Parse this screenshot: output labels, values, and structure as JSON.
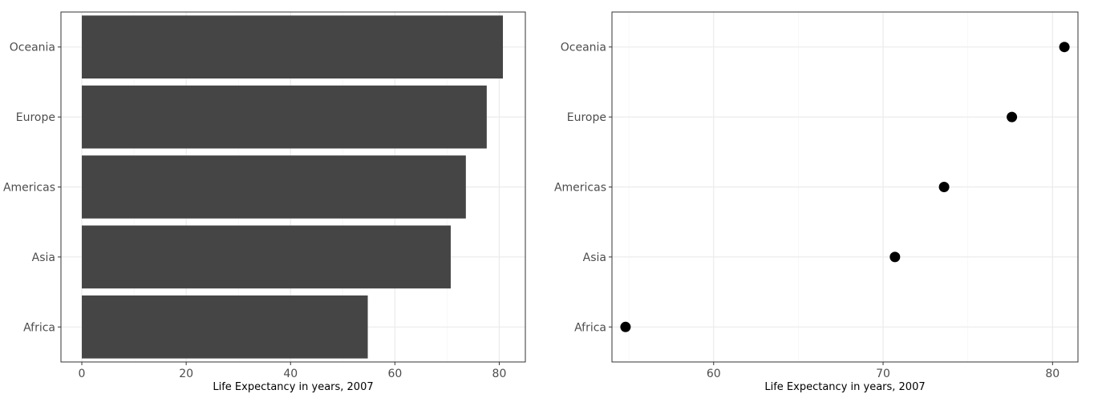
{
  "chart_data": [
    {
      "type": "bar",
      "orientation": "horizontal",
      "categories": [
        "Africa",
        "Asia",
        "Americas",
        "Europe",
        "Oceania"
      ],
      "values": [
        54.8,
        70.7,
        73.6,
        77.6,
        80.7
      ],
      "xlabel": "Life Expectancy in years, 2007",
      "ylabel": "",
      "xlim": [
        -4,
        85
      ],
      "xticks": [
        0,
        20,
        40,
        60,
        80
      ],
      "grid": true,
      "colors": {
        "bar": "#454545",
        "grid_major": "#ebebeb",
        "grid_minor": "#f5f5f5",
        "panel_border": "#333333"
      }
    },
    {
      "type": "scatter",
      "categories": [
        "Africa",
        "Asia",
        "Americas",
        "Europe",
        "Oceania"
      ],
      "values": [
        54.8,
        70.7,
        73.6,
        77.6,
        80.7
      ],
      "xlabel": "Life Expectancy in years, 2007",
      "ylabel": "",
      "xlim": [
        54.0,
        81.5
      ],
      "xticks": [
        60,
        70,
        80
      ],
      "grid": true,
      "colors": {
        "point": "#000000",
        "grid_major": "#ebebeb",
        "grid_minor": "#f5f5f5",
        "panel_border": "#333333"
      }
    }
  ]
}
